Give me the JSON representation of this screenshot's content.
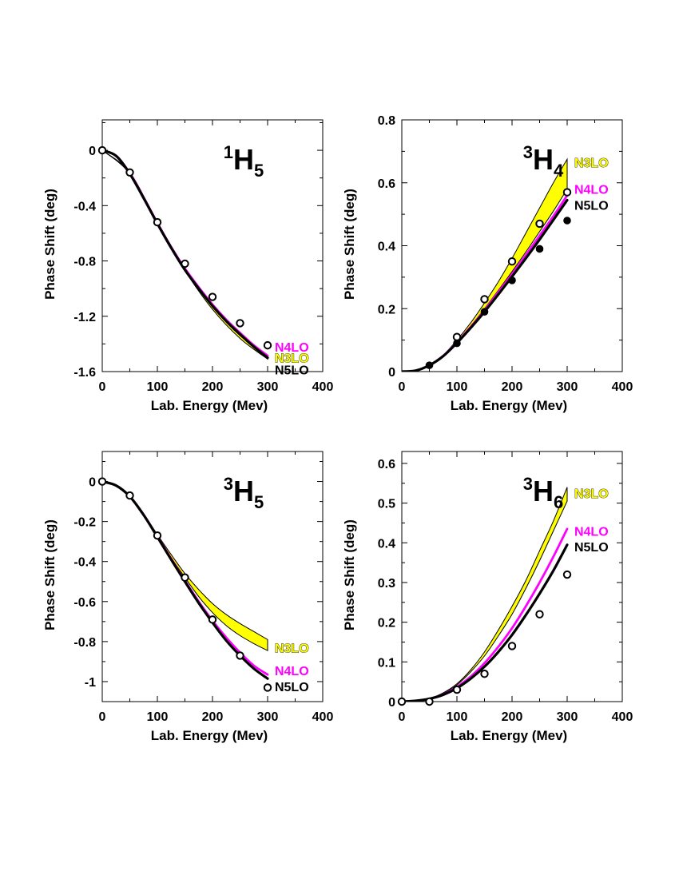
{
  "chart_data": [
    {
      "type": "line",
      "title": {
        "sup": "1",
        "main": "H",
        "sub": "5"
      },
      "xlabel": "Lab. Energy (Mev)",
      "ylabel": "Phase Shift (deg)",
      "xlim": [
        0,
        400
      ],
      "ylim": [
        -1.6,
        0.22
      ],
      "xticks": [
        0,
        100,
        200,
        300,
        400
      ],
      "xtick_labels": [
        "0",
        "100",
        "200",
        "300",
        "400"
      ],
      "yticks": [
        0,
        -0.4,
        -0.8,
        -1.2,
        -1.6
      ],
      "ytick_labels": [
        "0",
        "-0.4",
        "-0.8",
        "-1.2",
        "-1.6"
      ],
      "series": [
        {
          "name": "N3LO",
          "kind": "band",
          "color": "#ffff00",
          "x": [
            0,
            50,
            100,
            150,
            200,
            250,
            300
          ],
          "lower": [
            0,
            -0.17,
            -0.53,
            -0.87,
            -1.15,
            -1.36,
            -1.51
          ],
          "upper": [
            0,
            -0.16,
            -0.52,
            -0.85,
            -1.13,
            -1.34,
            -1.48
          ]
        },
        {
          "name": "N4LO",
          "kind": "line",
          "color": "#ff00ff",
          "x": [
            0,
            25,
            50,
            75,
            100,
            125,
            150,
            175,
            200,
            225,
            250,
            275,
            300
          ],
          "y": [
            0,
            -0.04,
            -0.165,
            -0.34,
            -0.525,
            -0.7,
            -0.855,
            -0.99,
            -1.115,
            -1.225,
            -1.32,
            -1.41,
            -1.485
          ]
        },
        {
          "name": "N5LO",
          "kind": "line",
          "color": "#000000",
          "x": [
            0,
            25,
            50,
            75,
            100,
            125,
            150,
            175,
            200,
            225,
            250,
            275,
            300
          ],
          "y": [
            0,
            -0.04,
            -0.17,
            -0.345,
            -0.53,
            -0.705,
            -0.865,
            -1.0,
            -1.125,
            -1.235,
            -1.33,
            -1.42,
            -1.5
          ]
        },
        {
          "name": "data",
          "kind": "points",
          "marker": "open",
          "x": [
            0,
            50,
            100,
            150,
            200,
            250,
            300
          ],
          "y": [
            0,
            -0.16,
            -0.52,
            -0.82,
            -1.06,
            -1.25,
            -1.41
          ]
        }
      ],
      "labels": [
        {
          "text": "N4LO",
          "color": "#ff00ff",
          "x": 313,
          "y": -1.42
        },
        {
          "text": "N3LO",
          "color": "#ffff00",
          "outline": true,
          "x": 313,
          "y": -1.5
        },
        {
          "text": "N5LO",
          "color": "#000000",
          "x": 313,
          "y": -1.585
        }
      ]
    },
    {
      "type": "line",
      "title": {
        "sup": "3",
        "main": "H",
        "sub": "4"
      },
      "xlabel": "Lab. Energy (Mev)",
      "ylabel": "Phase Shift (deg)",
      "xlim": [
        0,
        400
      ],
      "ylim": [
        0,
        0.8
      ],
      "xticks": [
        0,
        100,
        200,
        300,
        400
      ],
      "xtick_labels": [
        "0",
        "100",
        "200",
        "300",
        "400"
      ],
      "yticks": [
        0,
        0.2,
        0.4,
        0.6,
        0.8
      ],
      "ytick_labels": [
        "0",
        "0.2",
        "0.4",
        "0.6",
        "0.8"
      ],
      "series": [
        {
          "name": "N3LO",
          "kind": "band",
          "color": "#ffff00",
          "x": [
            0,
            25,
            50,
            75,
            100,
            125,
            150,
            175,
            200,
            225,
            250,
            275,
            300
          ],
          "lower": [
            0,
            0.003,
            0.02,
            0.05,
            0.095,
            0.145,
            0.2,
            0.258,
            0.318,
            0.38,
            0.445,
            0.51,
            0.58
          ],
          "upper": [
            0,
            0.003,
            0.02,
            0.052,
            0.1,
            0.155,
            0.218,
            0.285,
            0.36,
            0.44,
            0.52,
            0.6,
            0.675
          ]
        },
        {
          "name": "N4LO",
          "kind": "line",
          "color": "#ff00ff",
          "x": [
            0,
            25,
            50,
            75,
            100,
            125,
            150,
            175,
            200,
            225,
            250,
            275,
            300
          ],
          "y": [
            0,
            0.003,
            0.02,
            0.05,
            0.093,
            0.142,
            0.195,
            0.252,
            0.31,
            0.37,
            0.432,
            0.494,
            0.56
          ]
        },
        {
          "name": "N5LO",
          "kind": "line",
          "color": "#000000",
          "x": [
            0,
            25,
            50,
            75,
            100,
            125,
            150,
            175,
            200,
            225,
            250,
            275,
            300
          ],
          "y": [
            0,
            0.003,
            0.02,
            0.049,
            0.091,
            0.139,
            0.19,
            0.245,
            0.302,
            0.36,
            0.42,
            0.482,
            0.545
          ]
        },
        {
          "name": "data-open",
          "kind": "points",
          "marker": "open",
          "x": [
            100,
            150,
            200,
            250,
            300
          ],
          "y": [
            0.11,
            0.23,
            0.35,
            0.47,
            0.57
          ]
        },
        {
          "name": "data-filled",
          "kind": "points",
          "marker": "filled",
          "x": [
            50,
            100,
            150,
            200,
            250,
            300
          ],
          "y": [
            0.02,
            0.09,
            0.19,
            0.29,
            0.39,
            0.48
          ]
        }
      ],
      "labels": [
        {
          "text": "N3LO",
          "color": "#ffff00",
          "outline": true,
          "x": 313,
          "y": 0.665
        },
        {
          "text": "N4LO",
          "color": "#ff00ff",
          "x": 313,
          "y": 0.58
        },
        {
          "text": "N5LO",
          "color": "#000000",
          "x": 313,
          "y": 0.53
        }
      ]
    },
    {
      "type": "line",
      "title": {
        "sup": "3",
        "main": "H",
        "sub": "5"
      },
      "xlabel": "Lab. Energy (Mev)",
      "ylabel": "Phase Shift (deg)",
      "xlim": [
        0,
        400
      ],
      "ylim": [
        -1.1,
        0.15
      ],
      "xticks": [
        0,
        100,
        200,
        300,
        400
      ],
      "xtick_labels": [
        "0",
        "100",
        "200",
        "300",
        "400"
      ],
      "yticks": [
        0,
        -0.2,
        -0.4,
        -0.6,
        -0.8,
        -1
      ],
      "ytick_labels": [
        "0",
        "-0.2",
        "-0.4",
        "-0.6",
        "-0.8",
        "-1"
      ],
      "series": [
        {
          "name": "N3LO",
          "kind": "band",
          "color": "#ffff00",
          "x": [
            0,
            25,
            50,
            75,
            100,
            125,
            150,
            175,
            200,
            225,
            250,
            275,
            300
          ],
          "lower": [
            0,
            -0.02,
            -0.075,
            -0.165,
            -0.27,
            -0.38,
            -0.48,
            -0.575,
            -0.655,
            -0.72,
            -0.77,
            -0.81,
            -0.845
          ],
          "upper": [
            0,
            -0.02,
            -0.075,
            -0.162,
            -0.265,
            -0.365,
            -0.46,
            -0.54,
            -0.61,
            -0.665,
            -0.71,
            -0.75,
            -0.79
          ]
        },
        {
          "name": "N4LO",
          "kind": "line",
          "color": "#ff00ff",
          "x": [
            0,
            25,
            50,
            75,
            100,
            125,
            150,
            175,
            200,
            225,
            250,
            275,
            300
          ],
          "y": [
            0,
            -0.02,
            -0.075,
            -0.165,
            -0.275,
            -0.385,
            -0.495,
            -0.6,
            -0.695,
            -0.78,
            -0.855,
            -0.92,
            -0.965
          ]
        },
        {
          "name": "N5LO",
          "kind": "line",
          "color": "#000000",
          "x": [
            0,
            25,
            50,
            75,
            100,
            125,
            150,
            175,
            200,
            225,
            250,
            275,
            300
          ],
          "y": [
            0,
            -0.02,
            -0.075,
            -0.167,
            -0.277,
            -0.39,
            -0.5,
            -0.607,
            -0.705,
            -0.795,
            -0.87,
            -0.935,
            -0.985
          ]
        },
        {
          "name": "data",
          "kind": "points",
          "marker": "open",
          "x": [
            0,
            50,
            100,
            150,
            200,
            250,
            300
          ],
          "y": [
            0,
            -0.07,
            -0.27,
            -0.48,
            -0.69,
            -0.87,
            -1.03
          ]
        }
      ],
      "labels": [
        {
          "text": "N3LO",
          "color": "#ffff00",
          "outline": true,
          "x": 313,
          "y": -0.83
        },
        {
          "text": "N4LO",
          "color": "#ff00ff",
          "x": 313,
          "y": -0.945
        },
        {
          "text": "N5LO",
          "color": "#000000",
          "x": 313,
          "y": -1.025
        }
      ]
    },
    {
      "type": "line",
      "title": {
        "sup": "3",
        "main": "H",
        "sub": "6"
      },
      "xlabel": "Lab. Energy (Mev)",
      "ylabel": "Phase Shift (deg)",
      "xlim": [
        0,
        400
      ],
      "ylim": [
        0,
        0.63
      ],
      "xticks": [
        0,
        100,
        200,
        300,
        400
      ],
      "xtick_labels": [
        "0",
        "100",
        "200",
        "300",
        "400"
      ],
      "yticks": [
        0,
        0.1,
        0.2,
        0.3,
        0.4,
        0.5,
        0.6
      ],
      "ytick_labels": [
        "0",
        "0.1",
        "0.2",
        "0.3",
        "0.4",
        "0.5",
        "0.6"
      ],
      "series": [
        {
          "name": "N3LO",
          "kind": "band",
          "color": "#ffff00",
          "x": [
            0,
            25,
            50,
            75,
            100,
            125,
            150,
            175,
            200,
            225,
            250,
            275,
            300
          ],
          "lower": [
            0,
            0.002,
            0.008,
            0.02,
            0.042,
            0.075,
            0.115,
            0.165,
            0.22,
            0.285,
            0.355,
            0.43,
            0.505
          ],
          "upper": [
            0,
            0.002,
            0.008,
            0.022,
            0.045,
            0.08,
            0.125,
            0.18,
            0.24,
            0.305,
            0.38,
            0.455,
            0.54
          ]
        },
        {
          "name": "N4LO",
          "kind": "line",
          "color": "#ff00ff",
          "x": [
            0,
            25,
            50,
            75,
            100,
            125,
            150,
            175,
            200,
            225,
            250,
            275,
            300
          ],
          "y": [
            0,
            0.002,
            0.007,
            0.018,
            0.037,
            0.063,
            0.097,
            0.138,
            0.185,
            0.24,
            0.3,
            0.365,
            0.435
          ]
        },
        {
          "name": "N5LO",
          "kind": "line",
          "color": "#000000",
          "x": [
            0,
            25,
            50,
            75,
            100,
            125,
            150,
            175,
            200,
            225,
            250,
            275,
            300
          ],
          "y": [
            0,
            0.002,
            0.007,
            0.017,
            0.034,
            0.058,
            0.088,
            0.125,
            0.168,
            0.218,
            0.272,
            0.33,
            0.395
          ]
        },
        {
          "name": "data",
          "kind": "points",
          "marker": "open",
          "x": [
            0,
            50,
            100,
            150,
            200,
            250,
            300
          ],
          "y": [
            0,
            0,
            0.03,
            0.07,
            0.14,
            0.22,
            0.32
          ]
        }
      ],
      "labels": [
        {
          "text": "N3LO",
          "color": "#ffff00",
          "outline": true,
          "x": 313,
          "y": 0.525
        },
        {
          "text": "N4LO",
          "color": "#ff00ff",
          "x": 313,
          "y": 0.43
        },
        {
          "text": "N5LO",
          "color": "#000000",
          "x": 313,
          "y": 0.39
        }
      ]
    }
  ]
}
